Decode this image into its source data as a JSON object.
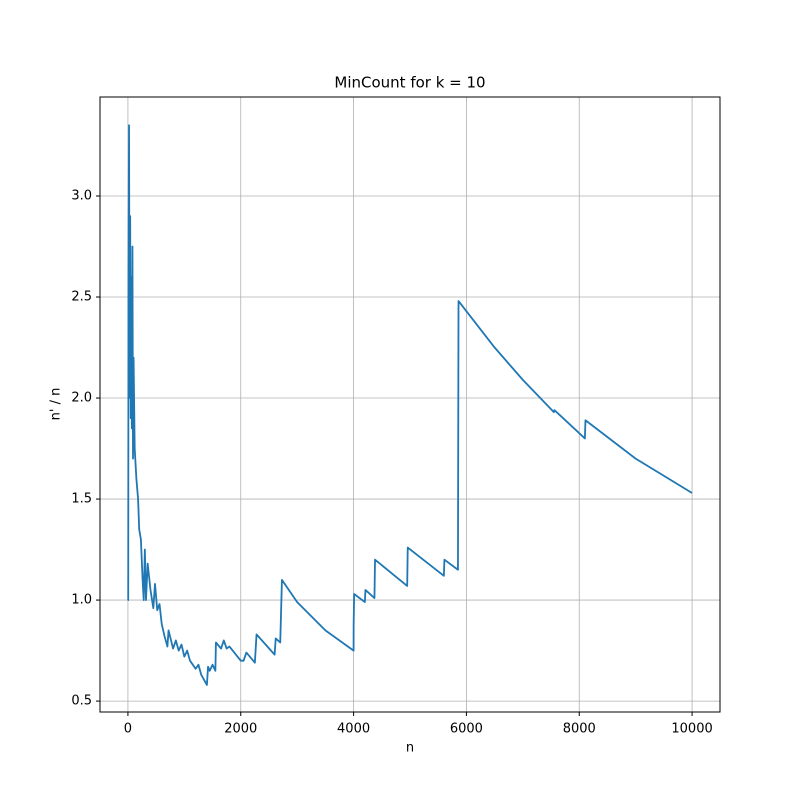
{
  "chart_data": {
    "type": "line",
    "title": "MinCount for k = 10",
    "x_label": "n",
    "y_label": "n' / n",
    "x": [
      1,
      5,
      10,
      20,
      30,
      40,
      50,
      60,
      70,
      80,
      90,
      100,
      120,
      150,
      180,
      200,
      230,
      260,
      280,
      300,
      320,
      350,
      400,
      450,
      480,
      520,
      560,
      600,
      650,
      700,
      720,
      800,
      850,
      900,
      950,
      1000,
      1050,
      1100,
      1200,
      1250,
      1300,
      1400,
      1420,
      1450,
      1500,
      1550,
      1560,
      1650,
      1700,
      1750,
      1800,
      2000,
      2050,
      2100,
      2250,
      2280,
      2600,
      2620,
      2700,
      2730,
      3000,
      3500,
      4000,
      4001,
      4010,
      4200,
      4210,
      4370,
      4380,
      4950,
      4960,
      5600,
      5610,
      5850,
      5860,
      6500,
      7000,
      7550,
      7560,
      7600,
      8100,
      8110,
      9000,
      10000
    ],
    "series": [
      {
        "name": "n' / n",
        "color": "#1f77b4",
        "values": [
          1.0,
          1.0,
          2.6,
          3.35,
          2.0,
          2.9,
          1.9,
          2.6,
          1.85,
          2.75,
          1.7,
          2.2,
          1.75,
          1.6,
          1.5,
          1.35,
          1.3,
          1.1,
          1.0,
          1.25,
          1.0,
          1.18,
          1.05,
          0.96,
          1.08,
          0.95,
          0.98,
          0.88,
          0.82,
          0.77,
          0.85,
          0.76,
          0.8,
          0.75,
          0.78,
          0.72,
          0.75,
          0.7,
          0.66,
          0.68,
          0.63,
          0.58,
          0.67,
          0.65,
          0.68,
          0.65,
          0.79,
          0.76,
          0.8,
          0.76,
          0.77,
          0.7,
          0.7,
          0.74,
          0.69,
          0.83,
          0.73,
          0.81,
          0.79,
          1.1,
          0.99,
          0.85,
          0.75,
          0.88,
          1.03,
          0.99,
          1.05,
          1.01,
          1.2,
          1.07,
          1.26,
          1.12,
          1.2,
          1.15,
          2.48,
          2.25,
          2.09,
          1.93,
          1.94,
          1.93,
          1.8,
          1.89,
          1.7,
          1.53
        ]
      }
    ],
    "xlim": [
      -495,
      10495
    ],
    "ylim": [
      0.446,
      3.49
    ],
    "xticks": [
      0,
      2000,
      4000,
      6000,
      8000,
      10000
    ],
    "yticks": [
      0.5,
      {
        "value": 1.0,
        "label": "1.0"
      },
      1.5,
      {
        "value": 2.0,
        "label": "2.0"
      },
      2.5,
      {
        "value": 3.0,
        "label": "3.0"
      }
    ],
    "grid": true
  }
}
